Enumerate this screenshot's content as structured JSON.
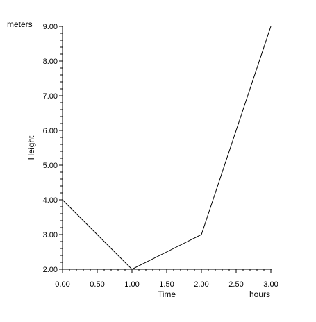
{
  "chart_data": {
    "type": "line",
    "title": "",
    "xlabel": "Time",
    "ylabel": "Height",
    "x_unit": "hours",
    "y_unit": "meters",
    "xlim": [
      0,
      3
    ],
    "ylim": [
      2,
      9
    ],
    "x_ticks": [
      "0.00",
      "0.50",
      "1.00",
      "1.50",
      "2.00",
      "2.50",
      "3.00"
    ],
    "y_ticks": [
      "2.00",
      "3.00",
      "4.00",
      "5.00",
      "6.00",
      "7.00",
      "8.00",
      "9.00"
    ],
    "grid": false,
    "series": [
      {
        "x": [
          0,
          1,
          2,
          3
        ],
        "y": [
          4,
          2,
          3,
          9
        ]
      }
    ],
    "colors": {
      "line": "#000000",
      "axis": "#000000"
    }
  }
}
